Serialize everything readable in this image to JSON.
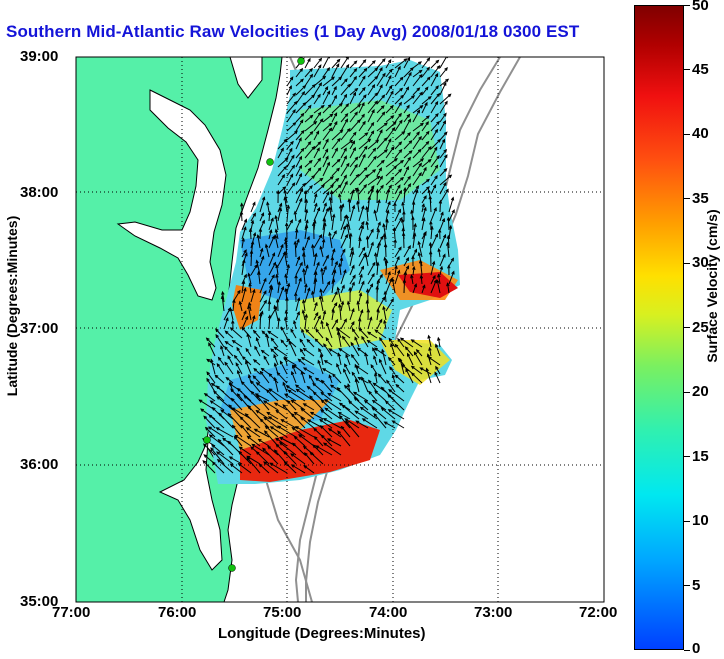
{
  "title": "Southern Mid-Atlantic Raw Velocities (1 Day Avg) 2008/01/18 0300 EST",
  "x_axis": {
    "label": "Longitude (Degrees:Minutes)",
    "ticks": [
      "77:00",
      "76:00",
      "75:00",
      "74:00",
      "73:00",
      "72:00"
    ]
  },
  "y_axis": {
    "label": "Latitude (Degrees:Minutes)",
    "ticks": [
      "39:00",
      "38:00",
      "37:00",
      "36:00",
      "35:00"
    ]
  },
  "colorbar": {
    "label": "Surface Velocity (cm/s)",
    "ticks": [
      "0",
      "5",
      "10",
      "15",
      "20",
      "25",
      "30",
      "35",
      "40",
      "45",
      "50"
    ],
    "range": [
      0,
      50
    ],
    "colormap": "jet"
  },
  "map": {
    "lon_range": [
      -77,
      -72
    ],
    "lat_range": [
      35,
      39
    ],
    "land_color": "#55f0a8",
    "coast_color": "#000000",
    "bathymetry_color": "#909090",
    "grid": "dotted",
    "station_marker_color": "#10c010"
  }
}
